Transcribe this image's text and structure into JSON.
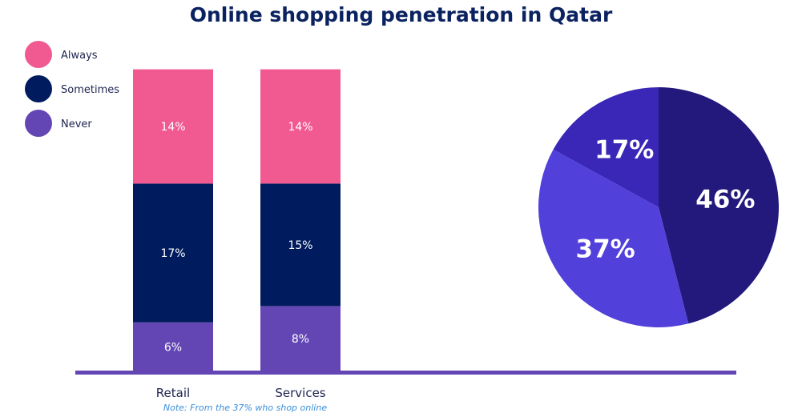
{
  "chart_data": [
    {
      "type": "bar",
      "stacked": true,
      "title": "Online shopping penetration in Qatar",
      "categories": [
        "Retail",
        "Services"
      ],
      "series": [
        {
          "name": "Always",
          "values": [
            14,
            14
          ],
          "labels": [
            "14%",
            "14%"
          ],
          "color": "#f05a91"
        },
        {
          "name": "Sometimes",
          "values": [
            17,
            15
          ],
          "labels": [
            "17%",
            "15%"
          ],
          "color": "#001c5e"
        },
        {
          "name": "Never",
          "values": [
            6,
            8
          ],
          "labels": [
            "6%",
            "8%"
          ],
          "color": "#6346b4"
        }
      ],
      "legend": "top-left",
      "note": "Note: From the 37% who shop online"
    },
    {
      "type": "pie",
      "slices": [
        {
          "value": 46,
          "label": "46%",
          "color": "#23197c"
        },
        {
          "value": 37,
          "label": "37%",
          "color": "#5140da"
        },
        {
          "value": 17,
          "label": "17%",
          "color": "#3a27b7"
        }
      ]
    }
  ],
  "colors": {
    "axis": "#6346b4",
    "title": "#0a2260"
  }
}
